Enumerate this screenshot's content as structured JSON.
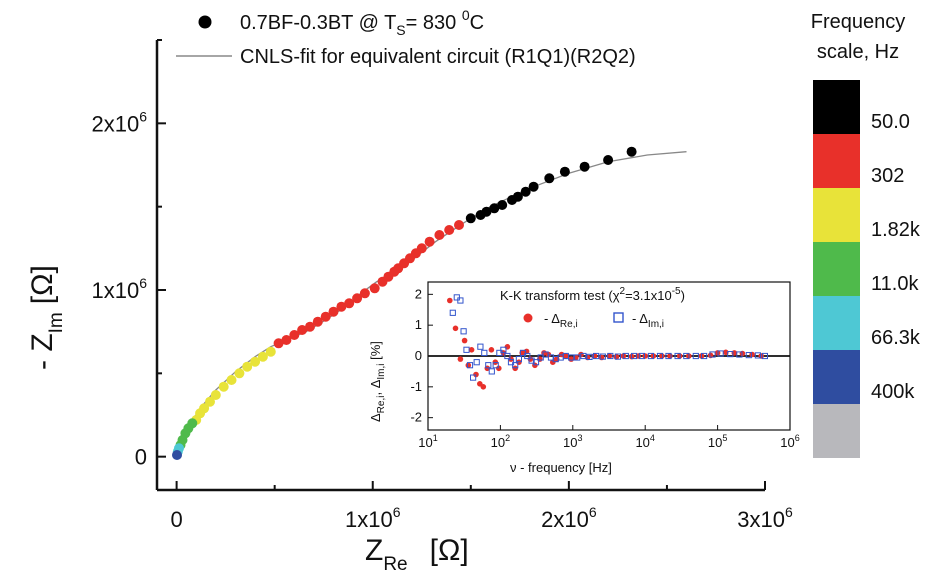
{
  "chart_data": [
    {
      "type": "scatter",
      "title": "",
      "xlabel": "Z",
      "xlabel_sub": "Re",
      "xlabel_unit": "[Ω]",
      "ylabel": "- Z",
      "ylabel_sub": "Im",
      "ylabel_unit": "[Ω]",
      "xlim": [
        -0.1,
        3.0
      ],
      "ylim": [
        -0.2,
        2.5
      ],
      "scale_factor": 1000000,
      "x_ticks": [
        {
          "value": 0,
          "label": "0",
          "exp": ""
        },
        {
          "value": 1,
          "label": "1x10",
          "exp": "6"
        },
        {
          "value": 2,
          "label": "2x10",
          "exp": "6"
        },
        {
          "value": 3,
          "label": "3x10",
          "exp": "6"
        }
      ],
      "y_ticks": [
        {
          "value": 0,
          "label": "0",
          "exp": ""
        },
        {
          "value": 1,
          "label": "1x10",
          "exp": "6"
        },
        {
          "value": 2,
          "label": "2x10",
          "exp": "6"
        }
      ],
      "legend": {
        "placement": "top",
        "data_label_pre": "0.7BF-0.3BT  @ T",
        "data_label_sub": "S",
        "data_label_post": "= 830 ",
        "data_label_sup": "0",
        "data_label_end": "C",
        "fit_label": "CNLS-fit for equivalent circuit (R1Q1)(R2Q2)"
      },
      "series": [
        {
          "role": "data",
          "color": "#000000",
          "points": [
            [
              2.32,
              1.83
            ],
            [
              2.2,
              1.78
            ],
            [
              2.08,
              1.74
            ],
            [
              1.98,
              1.71
            ],
            [
              1.9,
              1.67
            ],
            [
              1.82,
              1.62
            ],
            [
              1.78,
              1.59
            ],
            [
              1.74,
              1.56
            ],
            [
              1.71,
              1.54
            ],
            [
              1.66,
              1.51
            ],
            [
              1.62,
              1.49
            ],
            [
              1.58,
              1.47
            ],
            [
              1.55,
              1.45
            ],
            [
              1.5,
              1.43
            ]
          ]
        },
        {
          "role": "data",
          "color": "#e8302a",
          "points": [
            [
              1.44,
              1.39
            ],
            [
              1.39,
              1.36
            ],
            [
              1.34,
              1.33
            ],
            [
              1.29,
              1.29
            ],
            [
              1.25,
              1.25
            ],
            [
              1.22,
              1.22
            ],
            [
              1.19,
              1.19
            ],
            [
              1.16,
              1.16
            ],
            [
              1.13,
              1.13
            ],
            [
              1.11,
              1.11
            ],
            [
              1.08,
              1.08
            ],
            [
              1.05,
              1.05
            ],
            [
              1.01,
              1.01
            ],
            [
              0.96,
              0.98
            ],
            [
              0.92,
              0.95
            ],
            [
              0.88,
              0.92
            ],
            [
              0.84,
              0.9
            ],
            [
              0.8,
              0.87
            ],
            [
              0.76,
              0.84
            ],
            [
              0.72,
              0.81
            ],
            [
              0.68,
              0.78
            ],
            [
              0.64,
              0.76
            ],
            [
              0.6,
              0.73
            ],
            [
              0.56,
              0.7
            ],
            [
              0.52,
              0.68
            ]
          ]
        },
        {
          "role": "data",
          "color": "#e8e339",
          "points": [
            [
              0.48,
              0.63
            ],
            [
              0.44,
              0.6
            ],
            [
              0.4,
              0.57
            ],
            [
              0.36,
              0.54
            ],
            [
              0.32,
              0.5
            ],
            [
              0.28,
              0.46
            ],
            [
              0.24,
              0.42
            ],
            [
              0.2,
              0.37
            ],
            [
              0.17,
              0.33
            ],
            [
              0.14,
              0.29
            ],
            [
              0.12,
              0.26
            ],
            [
              0.1,
              0.22
            ]
          ]
        },
        {
          "role": "data",
          "color": "#4fba4b",
          "points": [
            [
              0.08,
              0.2
            ],
            [
              0.06,
              0.17
            ],
            [
              0.045,
              0.14
            ],
            [
              0.03,
              0.1
            ],
            [
              0.02,
              0.07
            ]
          ]
        },
        {
          "role": "data",
          "color": "#4ec8d4",
          "points": [
            [
              0.012,
              0.05
            ],
            [
              0.006,
              0.03
            ]
          ]
        },
        {
          "role": "data",
          "color": "#2f4da0",
          "points": [
            [
              0.002,
              0.01
            ]
          ]
        },
        {
          "role": "fit",
          "color": "#888888",
          "points": [
            [
              0,
              0
            ],
            [
              0.02,
              0.07
            ],
            [
              0.06,
              0.18
            ],
            [
              0.12,
              0.29
            ],
            [
              0.2,
              0.4
            ],
            [
              0.3,
              0.51
            ],
            [
              0.4,
              0.6
            ],
            [
              0.48,
              0.66
            ],
            [
              0.56,
              0.7
            ],
            [
              0.66,
              0.75
            ],
            [
              0.76,
              0.82
            ],
            [
              0.86,
              0.9
            ],
            [
              0.94,
              0.98
            ],
            [
              1.02,
              1.05
            ],
            [
              1.1,
              1.1
            ],
            [
              1.2,
              1.18
            ],
            [
              1.32,
              1.29
            ],
            [
              1.46,
              1.4
            ],
            [
              1.6,
              1.5
            ],
            [
              1.8,
              1.61
            ],
            [
              2.0,
              1.7
            ],
            [
              2.2,
              1.77
            ],
            [
              2.4,
              1.81
            ],
            [
              2.6,
              1.83
            ]
          ]
        }
      ]
    },
    {
      "type": "scatter",
      "title": "K-K transform test (χ",
      "title_sup": "2",
      "title_post": "=3.1x10",
      "title_sup2": "-5",
      "title_end": ")",
      "xlabel": "ν - frequency   [Hz]",
      "ylabel": "Δ",
      "ylabel_sub": "Re,i",
      "ylabel_mid": ", Δ",
      "ylabel_sub2": "Im,i",
      "ylabel_unit": " [%]",
      "xscale": "log",
      "xlim": [
        10,
        1000000
      ],
      "ylim": [
        -2.4,
        2.4
      ],
      "x_ticks": [
        {
          "value": 10,
          "label": "10",
          "exp": "1"
        },
        {
          "value": 100,
          "label": "10",
          "exp": "2"
        },
        {
          "value": 1000,
          "label": "10",
          "exp": "3"
        },
        {
          "value": 10000,
          "label": "10",
          "exp": "4"
        },
        {
          "value": 100000,
          "label": "10",
          "exp": "5"
        },
        {
          "value": 1000000,
          "label": "10",
          "exp": "6"
        }
      ],
      "y_ticks": [
        {
          "value": -2,
          "label": "-2"
        },
        {
          "value": -1,
          "label": "-1"
        },
        {
          "value": 0,
          "label": "0"
        },
        {
          "value": 1,
          "label": "1"
        },
        {
          "value": 2,
          "label": "2"
        }
      ],
      "legend_re": "- Δ",
      "legend_re_sub": "Re,i",
      "legend_im": "- Δ",
      "legend_im_sub": "Im,i",
      "series": [
        {
          "role": "re",
          "color": "#e8302a",
          "points": [
            [
              20,
              1.8
            ],
            [
              24,
              0.9
            ],
            [
              28,
              -0.1
            ],
            [
              32,
              0.5
            ],
            [
              36,
              -0.3
            ],
            [
              40,
              0.2
            ],
            [
              46,
              -0.6
            ],
            [
              52,
              -0.9
            ],
            [
              58,
              -1.0
            ],
            [
              66,
              -0.4
            ],
            [
              75,
              0.2
            ],
            [
              85,
              -0.2
            ],
            [
              95,
              -0.4
            ],
            [
              110,
              0.1
            ],
            [
              125,
              0.3
            ],
            [
              140,
              -0.1
            ],
            [
              160,
              -0.4
            ],
            [
              180,
              -0.2
            ],
            [
              200,
              0.1
            ],
            [
              230,
              0.15
            ],
            [
              260,
              -0.1
            ],
            [
              300,
              -0.3
            ],
            [
              350,
              -0.1
            ],
            [
              400,
              0.1
            ],
            [
              460,
              0.05
            ],
            [
              530,
              -0.2
            ],
            [
              600,
              -0.1
            ],
            [
              700,
              0.05
            ],
            [
              800,
              0
            ],
            [
              950,
              -0.1
            ],
            [
              1100,
              -0.05
            ],
            [
              1300,
              0.05
            ],
            [
              1600,
              -0.05
            ],
            [
              2000,
              0
            ],
            [
              2500,
              -0.05
            ],
            [
              3200,
              0
            ],
            [
              4000,
              -0.03
            ],
            [
              5000,
              0
            ],
            [
              6500,
              -0.02
            ],
            [
              8000,
              0
            ],
            [
              10000,
              0
            ],
            [
              13000,
              0
            ],
            [
              17000,
              0
            ],
            [
              22000,
              0
            ],
            [
              30000,
              0
            ],
            [
              40000,
              0
            ],
            [
              60000,
              0
            ],
            [
              80000,
              0.02
            ],
            [
              100000,
              0.1
            ],
            [
              130000,
              0.12
            ],
            [
              170000,
              0.1
            ],
            [
              220000,
              0.08
            ],
            [
              300000,
              0.05
            ],
            [
              400000,
              0
            ]
          ]
        },
        {
          "role": "im",
          "color": "#3355cc",
          "points": [
            [
              22,
              1.4
            ],
            [
              25,
              1.9
            ],
            [
              28,
              1.8
            ],
            [
              31,
              0.8
            ],
            [
              34,
              0.2
            ],
            [
              38,
              -0.3
            ],
            [
              42,
              -0.7
            ],
            [
              47,
              -0.2
            ],
            [
              53,
              0.3
            ],
            [
              60,
              0.1
            ],
            [
              68,
              -0.3
            ],
            [
              76,
              -0.5
            ],
            [
              86,
              -0.3
            ],
            [
              97,
              0.1
            ],
            [
              110,
              0.2
            ],
            [
              125,
              0
            ],
            [
              140,
              -0.2
            ],
            [
              160,
              -0.3
            ],
            [
              180,
              -0.1
            ],
            [
              205,
              0.1
            ],
            [
              235,
              0
            ],
            [
              270,
              -0.15
            ],
            [
              310,
              -0.2
            ],
            [
              360,
              -0.05
            ],
            [
              420,
              0.05
            ],
            [
              500,
              -0.05
            ],
            [
              580,
              -0.1
            ],
            [
              680,
              -0.05
            ],
            [
              800,
              0
            ],
            [
              950,
              -0.05
            ],
            [
              1150,
              -0.05
            ],
            [
              1400,
              0
            ],
            [
              1700,
              -0.03
            ],
            [
              2100,
              0
            ],
            [
              2600,
              -0.02
            ],
            [
              3300,
              0
            ],
            [
              4200,
              -0.02
            ],
            [
              5400,
              0
            ],
            [
              7000,
              0
            ],
            [
              9000,
              0
            ],
            [
              12000,
              0
            ],
            [
              16000,
              0
            ],
            [
              21000,
              0
            ],
            [
              28000,
              0
            ],
            [
              37000,
              0
            ],
            [
              50000,
              0
            ],
            [
              65000,
              0
            ],
            [
              85000,
              0.05
            ],
            [
              110000,
              0.08
            ],
            [
              150000,
              0.06
            ],
            [
              200000,
              0.05
            ],
            [
              270000,
              0.03
            ],
            [
              360000,
              0.02
            ],
            [
              450000,
              0
            ]
          ]
        }
      ]
    }
  ],
  "frequency_scale": {
    "title_line1": "Frequency",
    "title_line2": "scale, Hz",
    "blocks": [
      {
        "color": "#000000"
      },
      {
        "color": "#e8302a"
      },
      {
        "color": "#e8e339"
      },
      {
        "color": "#4fba4b"
      },
      {
        "color": "#4ec8d4"
      },
      {
        "color": "#2f4da0"
      },
      {
        "color": "#b8b8bc"
      }
    ],
    "labels": [
      "50.0",
      "302",
      "1.82k",
      "11.0k",
      "66.3k",
      "400k"
    ]
  }
}
